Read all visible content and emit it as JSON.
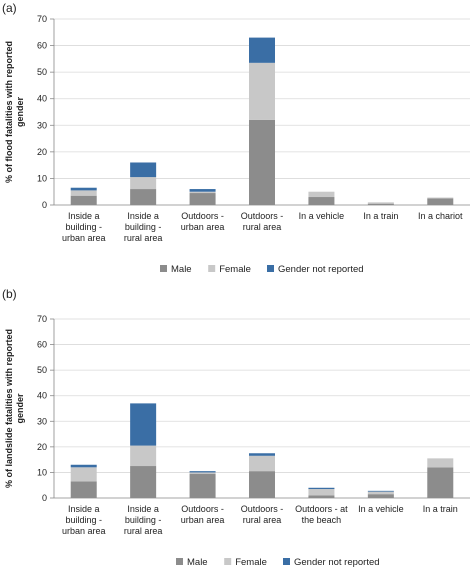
{
  "chart_data": [
    {
      "type": "bar",
      "stacked": true,
      "panel_label": "(a)",
      "ylabel_lines": [
        "% of flood  fatalities with reported",
        "gender"
      ],
      "ylim": [
        0,
        70
      ],
      "yticks": [
        0,
        10,
        20,
        30,
        40,
        50,
        60,
        70
      ],
      "grid": true,
      "legend": "bottom",
      "categories": [
        [
          "Inside a",
          "building -",
          "urban area"
        ],
        [
          "Inside a",
          "building -",
          "rural area"
        ],
        [
          "Outdoors -",
          "urban area"
        ],
        [
          "Outdoors -",
          "rural area"
        ],
        [
          "In a vehicle"
        ],
        [
          "In a train"
        ],
        [
          "In a chariot"
        ]
      ],
      "series": [
        {
          "name": "Male",
          "color": "#8c8c8c",
          "values": [
            3.5,
            6,
            4.5,
            32,
            3,
            0.5,
            2.5
          ]
        },
        {
          "name": "Female",
          "color": "#c8c8c8",
          "values": [
            2,
            4.5,
            0.5,
            21.5,
            2,
            0.5,
            0.3
          ]
        },
        {
          "name": "Gender not reported",
          "color": "#3a6ea5",
          "values": [
            1,
            5.5,
            1,
            9.5,
            0,
            0,
            0
          ]
        }
      ]
    },
    {
      "type": "bar",
      "stacked": true,
      "panel_label": "(b)",
      "ylabel_lines": [
        "% of landslide  fatalities with reported",
        "gender"
      ],
      "ylim": [
        0,
        70
      ],
      "yticks": [
        0,
        10,
        20,
        30,
        40,
        50,
        60,
        70
      ],
      "grid": true,
      "legend": "bottom",
      "categories": [
        [
          "Inside a",
          "building -",
          "urban area"
        ],
        [
          "Inside a",
          "building -",
          "rural area"
        ],
        [
          "Outdoors -",
          "urban area"
        ],
        [
          "Outdoors -",
          "rural area"
        ],
        [
          "Outdoors - at",
          "the beach"
        ],
        [
          "In a vehicle"
        ],
        [
          "In a train"
        ]
      ],
      "series": [
        {
          "name": "Male",
          "color": "#8c8c8c",
          "values": [
            6.5,
            12.5,
            9.5,
            10.5,
            1,
            1.5,
            12
          ]
        },
        {
          "name": "Female",
          "color": "#c8c8c8",
          "values": [
            5.5,
            8,
            0.5,
            6,
            2.5,
            1,
            3.5
          ]
        },
        {
          "name": "Gender not reported",
          "color": "#3a6ea5",
          "values": [
            1,
            16.5,
            0.5,
            1,
            0.5,
            0.3,
            0
          ]
        }
      ]
    }
  ]
}
